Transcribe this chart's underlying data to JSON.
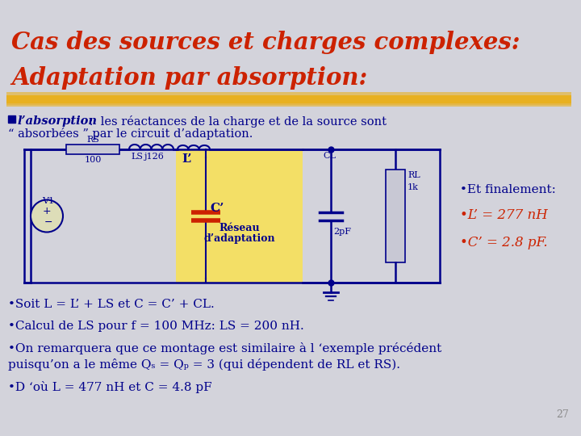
{
  "bg_color": "#d3d3db",
  "title_line1": "Cas des sources et charges complexes:",
  "title_line2": "Adaptation par absorption:",
  "title_color": "#cc2200",
  "highlight_color": "#e8b020",
  "dark_blue": "#00008b",
  "red_color": "#cc2200",
  "slide_number": "27",
  "finalement_title": "•Et finalement:",
  "finalement_L": "•L’ = 277 nH",
  "finalement_C": "•C’ = 2.8 pF.",
  "bullet2": "•Soit L = L’ + LS et C = C’ + CL.",
  "bullet3": "•Calcul de LS pour f = 100 MHz: LS = 200 nH.",
  "bullet4_line1": "•On remarquera que ce montage est similaire à l ‘exemple précédent",
  "bullet4_line2": "puisqu’on a le même Qₛ = Qₚ = 3 (qui dépendent de RL et RS).",
  "bullet5": "•D ‘où L = 477 nH et C = 4.8 pF"
}
